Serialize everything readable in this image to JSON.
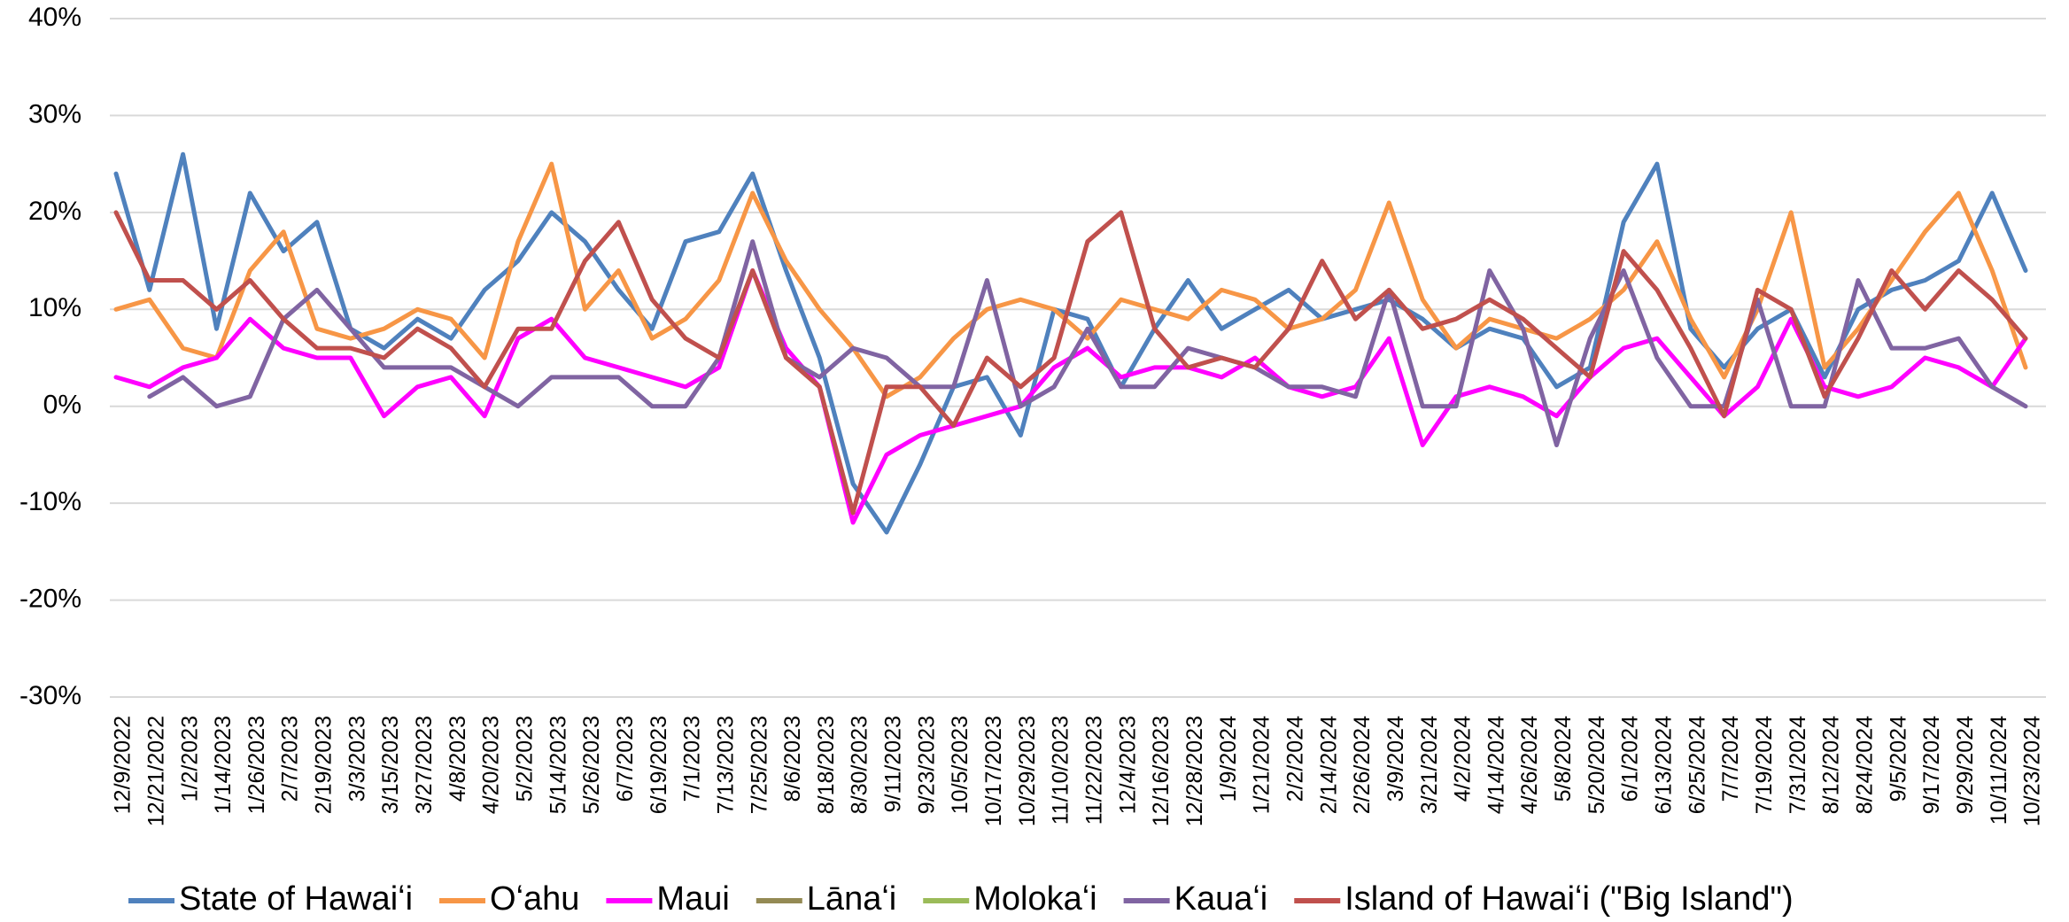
{
  "chart_data": {
    "type": "line",
    "categories": [
      "12/9/2022",
      "12/21/2022",
      "1/2/2023",
      "1/14/2023",
      "1/26/2023",
      "2/7/2023",
      "2/19/2023",
      "3/3/2023",
      "3/15/2023",
      "3/27/2023",
      "4/8/2023",
      "4/20/2023",
      "5/2/2023",
      "5/14/2023",
      "5/26/2023",
      "6/7/2023",
      "6/19/2023",
      "7/1/2023",
      "7/13/2023",
      "7/25/2023",
      "8/6/2023",
      "8/18/2023",
      "8/30/2023",
      "9/11/2023",
      "9/23/2023",
      "10/5/2023",
      "10/17/2023",
      "10/29/2023",
      "11/10/2023",
      "11/22/2023",
      "12/4/2023",
      "12/16/2023",
      "12/28/2023",
      "1/9/2024",
      "1/21/2024",
      "2/2/2024",
      "2/14/2024",
      "2/26/2024",
      "3/9/2024",
      "3/21/2024",
      "4/2/2024",
      "4/14/2024",
      "4/26/2024",
      "5/8/2024",
      "5/20/2024",
      "6/1/2024",
      "6/13/2024",
      "6/25/2024",
      "7/7/2024",
      "7/19/2024",
      "7/31/2024",
      "8/12/2024",
      "8/24/2024",
      "9/5/2024",
      "9/17/2024",
      "9/29/2024",
      "10/11/2024",
      "10/23/2024"
    ],
    "series": [
      {
        "name": "State of Hawaiʻi",
        "color": "#4f81bd",
        "values": [
          24,
          12,
          26,
          8,
          22,
          16,
          19,
          8,
          6,
          9,
          7,
          12,
          15,
          20,
          17,
          12,
          8,
          17,
          18,
          24,
          14,
          5,
          -8,
          -13,
          -6,
          2,
          3,
          -3,
          10,
          9,
          2,
          8,
          13,
          8,
          10,
          12,
          9,
          10,
          11,
          9,
          6,
          8,
          7,
          2,
          4,
          19,
          25,
          8,
          4,
          8,
          10,
          3,
          10,
          12,
          13,
          15,
          22,
          14
        ]
      },
      {
        "name": "Oʻahu",
        "color": "#f79646",
        "values": [
          10,
          11,
          6,
          5,
          14,
          18,
          8,
          7,
          8,
          10,
          9,
          5,
          17,
          25,
          10,
          14,
          7,
          9,
          13,
          22,
          15,
          10,
          6,
          1,
          3,
          7,
          10,
          11,
          10,
          7,
          11,
          10,
          9,
          12,
          11,
          8,
          9,
          12,
          21,
          11,
          6,
          9,
          8,
          7,
          9,
          12,
          17,
          9,
          3,
          10,
          20,
          4,
          8,
          13,
          18,
          22,
          14,
          4
        ]
      },
      {
        "name": "Maui",
        "color": "#ff00ff",
        "values": [
          3,
          2,
          4,
          5,
          9,
          6,
          5,
          5,
          -1,
          2,
          3,
          -1,
          7,
          9,
          5,
          4,
          3,
          2,
          4,
          14,
          6,
          2,
          -12,
          -5,
          -3,
          -2,
          -1,
          0,
          4,
          6,
          3,
          4,
          4,
          3,
          5,
          2,
          1,
          2,
          7,
          -4,
          1,
          2,
          1,
          -1,
          3,
          6,
          7,
          3,
          -1,
          2,
          9,
          2,
          1,
          2,
          5,
          4,
          2,
          7
        ]
      },
      {
        "name": "Lānaʻi",
        "color": "#948a54",
        "values": [
          null,
          null,
          null,
          null,
          null,
          null,
          null,
          null,
          null,
          null,
          null,
          null,
          null,
          null,
          null,
          null,
          null,
          null,
          null,
          null,
          null,
          null,
          null,
          null,
          null,
          null,
          null,
          null,
          null,
          null,
          null,
          null,
          null,
          null,
          null,
          null,
          null,
          null,
          null,
          null,
          null,
          null,
          null,
          null,
          null,
          null,
          null,
          null,
          null,
          null,
          null,
          null,
          null,
          null,
          null,
          null,
          null,
          null
        ]
      },
      {
        "name": "Molokaʻi",
        "color": "#9bbb59",
        "values": [
          null,
          null,
          null,
          null,
          null,
          null,
          null,
          null,
          null,
          null,
          null,
          null,
          null,
          null,
          null,
          null,
          null,
          null,
          null,
          null,
          null,
          null,
          null,
          null,
          null,
          null,
          null,
          null,
          null,
          null,
          null,
          null,
          null,
          null,
          null,
          null,
          null,
          null,
          null,
          null,
          null,
          null,
          null,
          null,
          null,
          null,
          null,
          null,
          null,
          null,
          null,
          null,
          null,
          null,
          null,
          null,
          null,
          null
        ]
      },
      {
        "name": "Kauaʻi",
        "color": "#8064a2",
        "values": [
          null,
          1,
          3,
          0,
          1,
          9,
          12,
          8,
          4,
          4,
          4,
          2,
          0,
          3,
          3,
          3,
          0,
          0,
          5,
          17,
          5,
          3,
          6,
          5,
          2,
          2,
          13,
          0,
          2,
          8,
          2,
          2,
          6,
          5,
          4,
          2,
          2,
          1,
          12,
          0,
          0,
          14,
          8,
          -4,
          7,
          14,
          5,
          0,
          0,
          11,
          0,
          0,
          13,
          6,
          6,
          7,
          2,
          0
        ]
      },
      {
        "name": "Island of Hawaiʻi (\"Big Island\")",
        "color": "#c0504d",
        "values": [
          20,
          13,
          13,
          10,
          13,
          9,
          6,
          6,
          5,
          8,
          6,
          2,
          8,
          8,
          15,
          19,
          11,
          7,
          5,
          14,
          5,
          2,
          -11,
          2,
          2,
          -2,
          5,
          2,
          5,
          17,
          20,
          8,
          4,
          5,
          4,
          8,
          15,
          9,
          12,
          8,
          9,
          11,
          9,
          6,
          3,
          16,
          12,
          6,
          -1,
          12,
          10,
          1,
          7,
          14,
          10,
          14,
          11,
          7
        ]
      }
    ],
    "ylim": [
      -30,
      40
    ],
    "yticks": [
      {
        "value": -30,
        "label": "-30%"
      },
      {
        "value": -20,
        "label": "-20%"
      },
      {
        "value": -10,
        "label": "-10%"
      },
      {
        "value": 0,
        "label": "0%"
      },
      {
        "value": 10,
        "label": "10%"
      },
      {
        "value": 20,
        "label": "20%"
      },
      {
        "value": 30,
        "label": "30%"
      },
      {
        "value": 40,
        "label": "40%"
      }
    ],
    "grid": true,
    "legend": "bottom"
  }
}
